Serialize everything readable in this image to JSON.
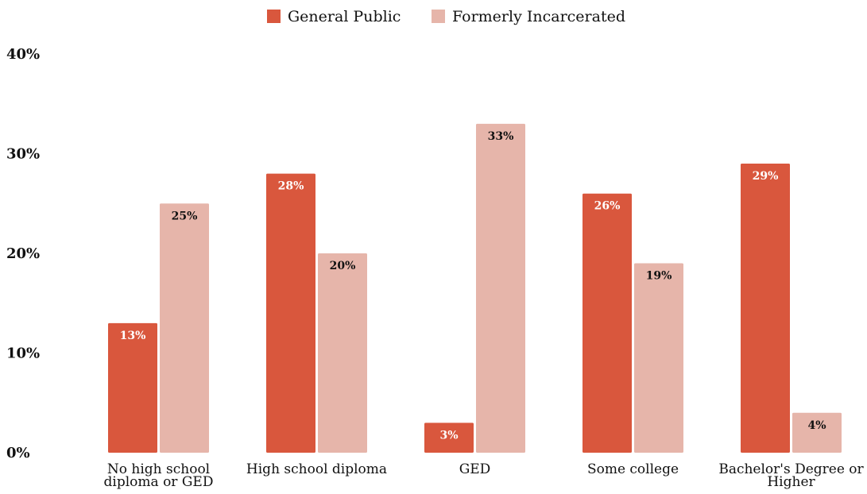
{
  "chart_data": {
    "type": "bar",
    "categories": [
      [
        "No high school",
        "diploma or GED"
      ],
      [
        "High school diploma"
      ],
      [
        "GED"
      ],
      [
        "Some college"
      ],
      [
        "Bachelor's Degree or",
        "Higher"
      ]
    ],
    "series": [
      {
        "name": "General Public",
        "color": "#d9573d",
        "values": [
          13,
          28,
          3,
          26,
          29
        ],
        "labels": [
          "13%",
          "28%",
          "3%",
          "26%",
          "29%"
        ],
        "label_color": "#ffffff"
      },
      {
        "name": "Formerly Incarcerated",
        "color": "#e6b5aa",
        "values": [
          25,
          20,
          33,
          19,
          4
        ],
        "labels": [
          "25%",
          "20%",
          "33%",
          "19%",
          "4%"
        ],
        "label_color": "#111111"
      }
    ],
    "ylim": [
      0,
      40
    ],
    "yticks": [
      0,
      10,
      20,
      30,
      40
    ],
    "ytick_labels": [
      "0%",
      "10%",
      "20%",
      "30%",
      "40%"
    ],
    "grid": false,
    "legend_position": "top-center",
    "title": "",
    "xlabel": "",
    "ylabel": ""
  }
}
